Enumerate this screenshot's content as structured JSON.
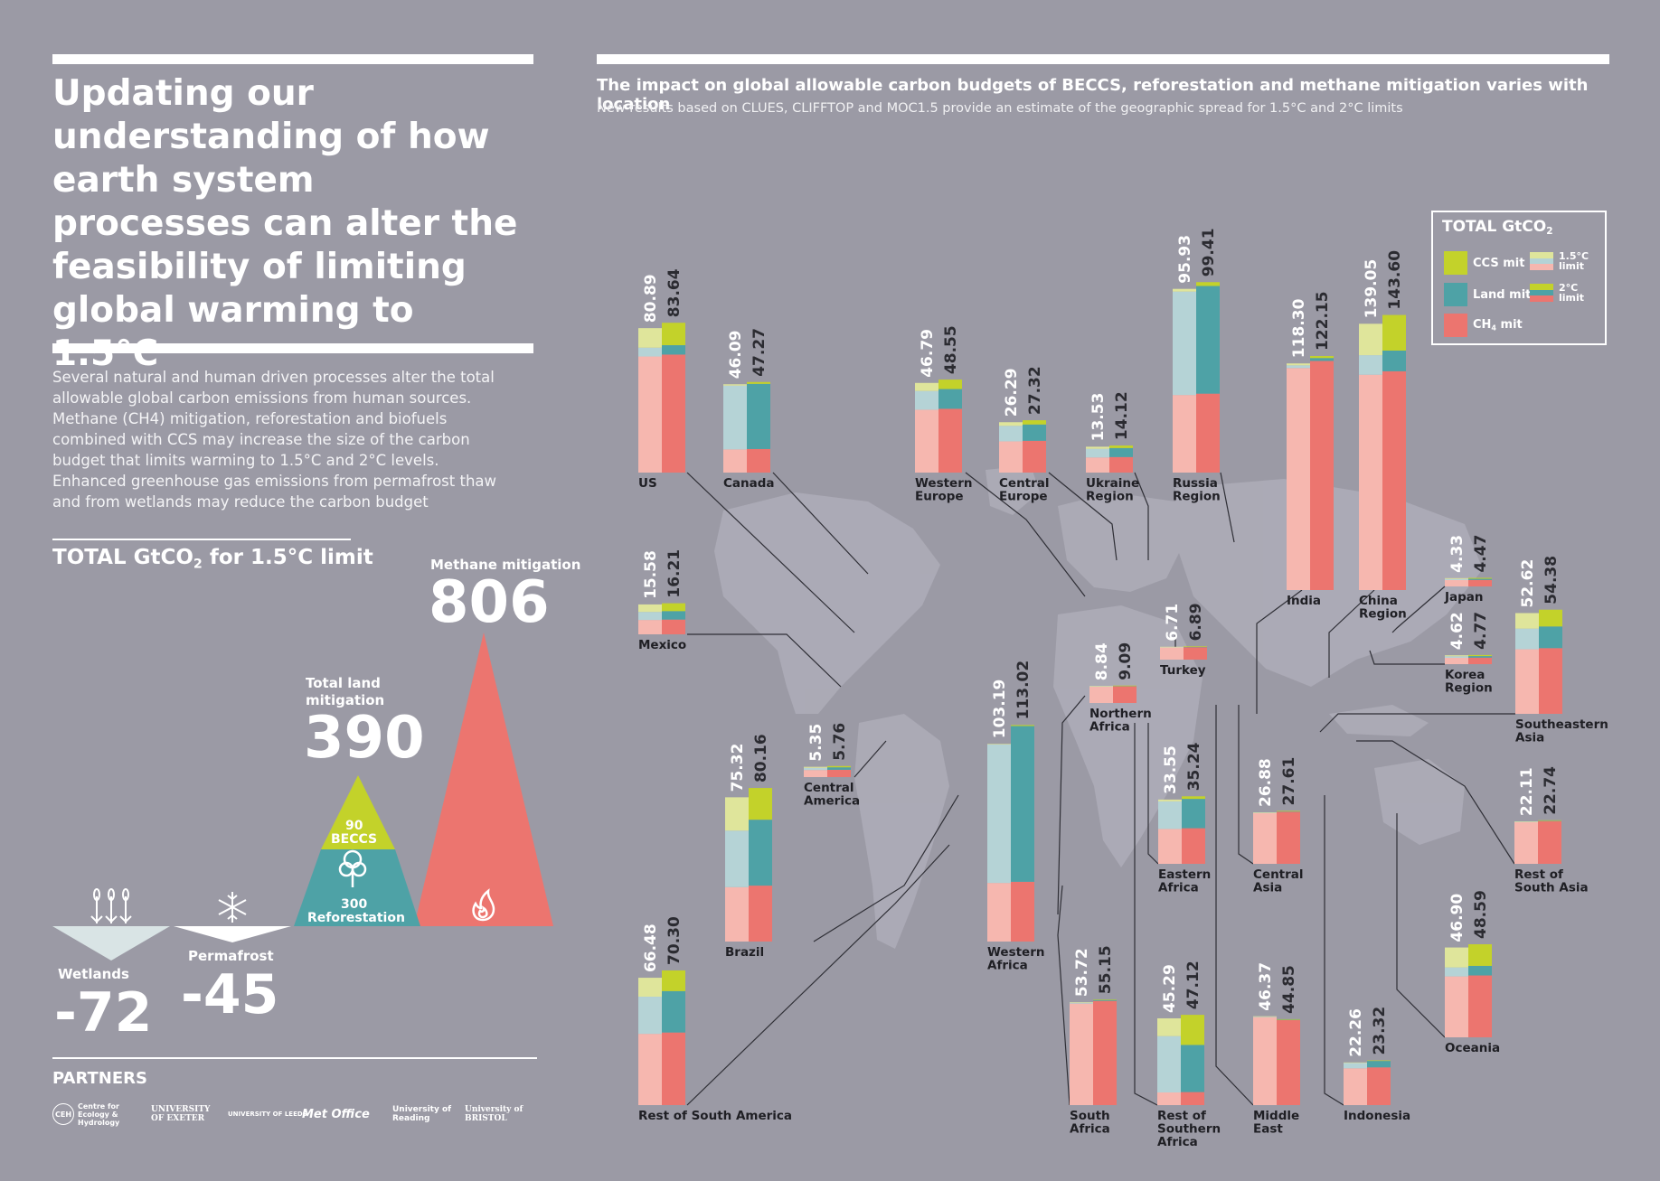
{
  "left_panel": {
    "title": "Updating our understanding of how earth system processes can alter the feasibility of limiting global warming to 1.5°C",
    "intro": "Several natural and human driven processes alter the total allowable global carbon emissions from human sources. Methane (CH4) mitigation, reforestation and biofuels combined with CCS may increase the size of the carbon budget that limits warming to 1.5°C and 2°C levels. Enhanced greenhouse gas emissions from permafrost thaw and from wetlands may reduce the carbon budget",
    "heading_prefix": "TOTAL GtCO",
    "heading_sub": "2",
    "heading_suffix": " for 1.5°C limit",
    "methane": {
      "label": "Methane mitigation",
      "value": "806"
    },
    "land": {
      "label": "Total land mitigation",
      "value": "390"
    },
    "beccs": {
      "value": "90",
      "label": "BECCS"
    },
    "reforestation": {
      "value": "300",
      "label": "Reforestation"
    },
    "wetlands": {
      "label": "Wetlands",
      "value": "-72"
    },
    "permafrost": {
      "label": "Permafrost",
      "value": "-45"
    }
  },
  "partners": {
    "title": "PARTNERS",
    "logos": [
      {
        "mark": "CEH",
        "text": "Centre for Ecology & Hydrology"
      },
      {
        "mark": "",
        "text": "UNIVERSITY OF EXETER"
      },
      {
        "mark": "",
        "text": "UNIVERSITY OF LEEDS"
      },
      {
        "mark": "",
        "text": "Met Office"
      },
      {
        "mark": "",
        "text": "University of Reading"
      },
      {
        "mark": "",
        "text": "University of BRISTOL"
      }
    ]
  },
  "chart_header": {
    "title": "The impact on global allowable carbon budgets of BECCS, reforestation and methane mitigation varies with location",
    "subtitle": "New results based on CLUES, CLIFFTOP and MOC1.5 provide an estimate of the geographic spread for 1.5°C and 2°C limits"
  },
  "legend": {
    "title_prefix": "TOTAL GtCO",
    "title_sub": "2",
    "items": [
      {
        "label": "CCS mit",
        "color": "#c3d22a"
      },
      {
        "label": "Land mit",
        "color": "#4ea2a6"
      },
      {
        "label_prefix": "CH",
        "label_sub": "4",
        "label_suffix": " mit",
        "color": "#ec756f"
      }
    ],
    "limit_15": "1.5°C limit",
    "limit_2": "2°C limit"
  },
  "colors": {
    "background": "#9b9aa5",
    "ch4_15": "#f6b7af",
    "land_15": "#b5d3d6",
    "ccs_15": "#dfe59b",
    "ch4_2": "#ec756f",
    "land_2": "#4ea2a6",
    "ccs_2": "#c3d22a",
    "map": "#aeadb8"
  },
  "chart_data": {
    "type": "bar",
    "unit": "GtCO2",
    "series": [
      {
        "name": "1.5°C limit"
      },
      {
        "name": "2°C limit"
      }
    ],
    "components": [
      "CH4 mit",
      "Land mit",
      "CCS mit"
    ],
    "regions": [
      {
        "name": "US",
        "totals": [
          "80.89",
          "83.64"
        ],
        "c15": [
          60.6,
          4.6,
          10.2
        ],
        "c2": [
          61.6,
          4.9,
          11.7
        ]
      },
      {
        "name": "Canada",
        "totals": [
          "46.09",
          "47.27"
        ],
        "c15": [
          12.1,
          33.3,
          0.7
        ],
        "c2": [
          12.3,
          34.0,
          0.97
        ]
      },
      {
        "name": "Western Europe",
        "totals": [
          "46.79",
          "48.55"
        ],
        "c15": [
          32.8,
          9.8,
          4.2
        ],
        "c2": [
          33.3,
          10.3,
          4.95
        ]
      },
      {
        "name": "Central Europe",
        "totals": [
          "26.29",
          "27.32"
        ],
        "c15": [
          16.3,
          8.1,
          1.9
        ],
        "c2": [
          16.6,
          8.5,
          2.22
        ]
      },
      {
        "name": "Ukraine Region",
        "totals": [
          "13.53",
          "14.12"
        ],
        "c15": [
          7.9,
          4.5,
          1.1
        ],
        "c2": [
          8.1,
          4.7,
          1.32
        ]
      },
      {
        "name": "Russia Region",
        "totals": [
          "95.93",
          "99.41"
        ],
        "c15": [
          40.5,
          54.0,
          1.4
        ],
        "c2": [
          41.2,
          56.2,
          2.01
        ]
      },
      {
        "name": "India",
        "totals": [
          "118.30",
          "122.15"
        ],
        "c15": [
          115.9,
          1.4,
          1.0
        ],
        "c2": [
          119.6,
          1.5,
          1.05
        ]
      },
      {
        "name": "China Region",
        "totals": [
          "139.05",
          "143.60"
        ],
        "c15": [
          112.4,
          10.2,
          16.4
        ],
        "c2": [
          114.2,
          10.8,
          18.6
        ]
      },
      {
        "name": "Mexico",
        "totals": [
          "15.58",
          "16.21"
        ],
        "c15": [
          7.5,
          4.2,
          3.9
        ],
        "c2": [
          7.7,
          4.4,
          4.11
        ]
      },
      {
        "name": "Brazil",
        "totals": [
          "75.32",
          "80.16"
        ],
        "c15": [
          28.4,
          29.5,
          17.4
        ],
        "c2": [
          29.2,
          34.4,
          16.56
        ]
      },
      {
        "name": "Central America",
        "totals": [
          "5.35",
          "5.76"
        ],
        "c15": [
          3.7,
          1.1,
          0.55
        ],
        "c2": [
          3.8,
          1.3,
          0.66
        ]
      },
      {
        "name": "Western Africa",
        "totals": [
          "103.19",
          "113.02"
        ],
        "c15": [
          30.6,
          72.3,
          0.29
        ],
        "c2": [
          31.2,
          81.3,
          0.52
        ]
      },
      {
        "name": "Northern Africa",
        "totals": [
          "8.84",
          "9.09"
        ],
        "c15": [
          8.5,
          0.25,
          0.09
        ],
        "c2": [
          8.7,
          0.27,
          0.12
        ]
      },
      {
        "name": "Turkey",
        "totals": [
          "6.71",
          "6.89"
        ],
        "c15": [
          6.4,
          0.2,
          0.11
        ],
        "c2": [
          6.5,
          0.25,
          0.14
        ]
      },
      {
        "name": "Japan",
        "totals": [
          "4.33",
          "4.47"
        ],
        "c15": [
          3.3,
          0.6,
          0.43
        ],
        "c2": [
          3.4,
          0.6,
          0.47
        ]
      },
      {
        "name": "Korea Region",
        "totals": [
          "4.62",
          "4.77"
        ],
        "c15": [
          3.3,
          0.8,
          0.52
        ],
        "c2": [
          3.4,
          0.8,
          0.57
        ]
      },
      {
        "name": "Southeastern Asia",
        "totals": [
          "52.62",
          "54.38"
        ],
        "c15": [
          33.7,
          10.8,
          8.1
        ],
        "c2": [
          34.3,
          11.3,
          8.78
        ]
      },
      {
        "name": "Eastern Africa",
        "totals": [
          "33.55",
          "35.24"
        ],
        "c15": [
          18.2,
          14.4,
          0.95
        ],
        "c2": [
          18.6,
          15.3,
          1.34
        ]
      },
      {
        "name": "Central Asia",
        "totals": [
          "26.88",
          "27.61"
        ],
        "c15": [
          26.5,
          0.25,
          0.13
        ],
        "c2": [
          27.2,
          0.26,
          0.15
        ]
      },
      {
        "name": "Rest of South Asia",
        "totals": [
          "22.11",
          "22.74"
        ],
        "c15": [
          21.7,
          0.3,
          0.11
        ],
        "c2": [
          22.3,
          0.31,
          0.13
        ]
      },
      {
        "name": "Rest of South America",
        "totals": [
          "66.48",
          "70.30"
        ],
        "c15": [
          37.2,
          19.4,
          9.88
        ],
        "c2": [
          37.9,
          21.6,
          10.8
        ]
      },
      {
        "name": "South Africa",
        "totals": [
          "53.72",
          "55.15"
        ],
        "c15": [
          53.0,
          0.5,
          0.22
        ],
        "c2": [
          54.4,
          0.5,
          0.25
        ]
      },
      {
        "name": "Rest of Southern Africa",
        "totals": [
          "45.29",
          "47.12"
        ],
        "c15": [
          6.6,
          29.4,
          9.29
        ],
        "c2": [
          6.8,
          24.6,
          15.72
        ]
      },
      {
        "name": "Middle East",
        "totals": [
          "46.37",
          "44.85"
        ],
        "c15": [
          45.9,
          0.3,
          0.17
        ],
        "c2": [
          44.4,
          0.3,
          0.15
        ]
      },
      {
        "name": "Indonesia",
        "totals": [
          "22.26",
          "23.32"
        ],
        "c15": [
          19.2,
          2.9,
          0.16
        ],
        "c2": [
          19.7,
          3.4,
          0.22
        ]
      },
      {
        "name": "Oceania",
        "totals": [
          "46.90",
          "48.59"
        ],
        "c15": [
          31.8,
          4.7,
          10.4
        ],
        "c2": [
          32.3,
          5.0,
          11.29
        ]
      }
    ]
  }
}
